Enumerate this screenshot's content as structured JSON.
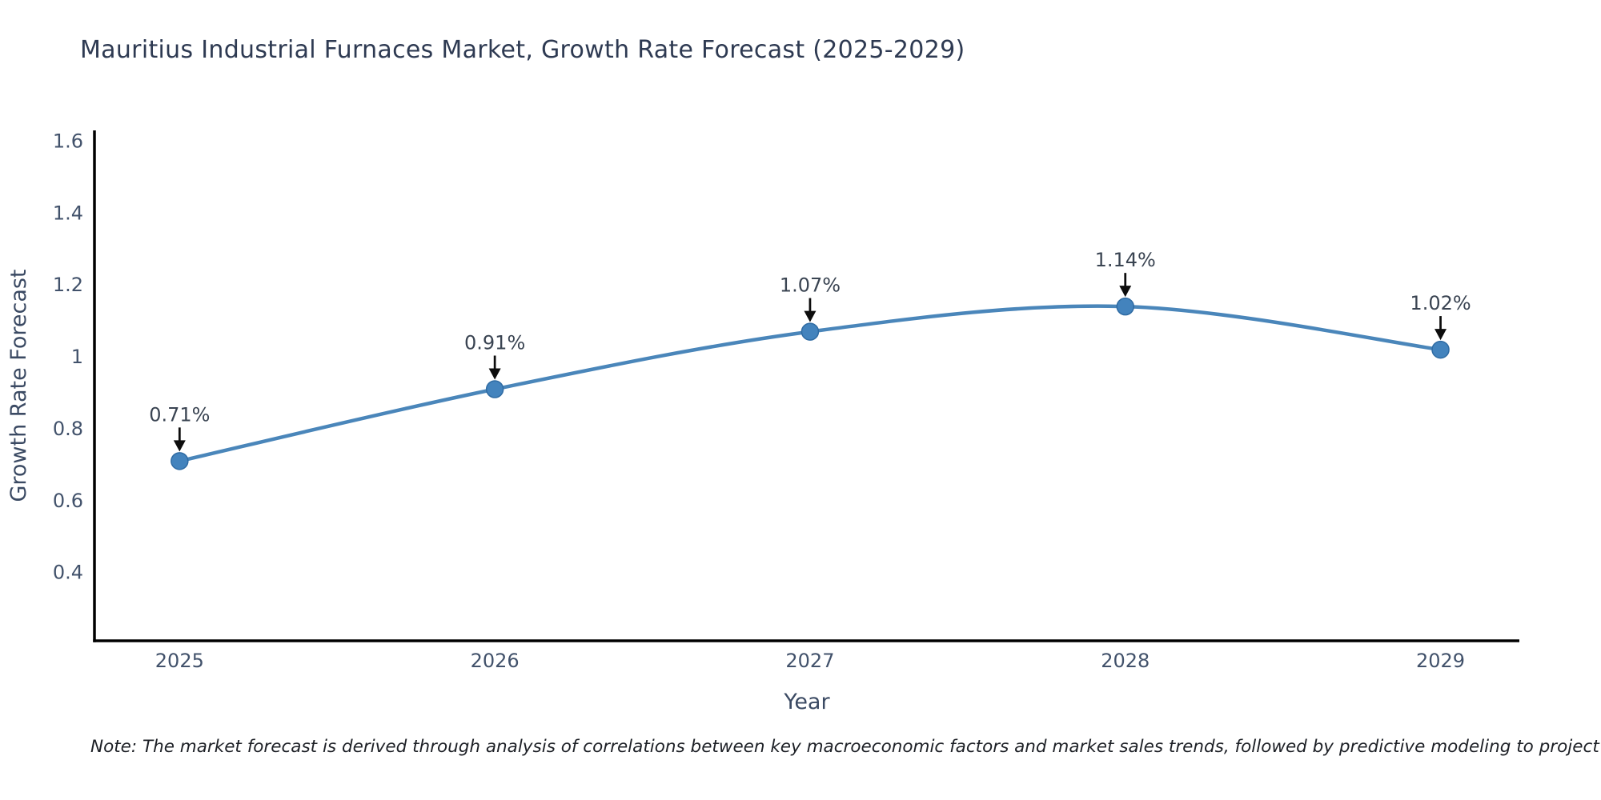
{
  "title": "Mauritius Industrial Furnaces Market, Growth Rate Forecast (2025-2029)",
  "note": "Note: The market forecast is derived through analysis of correlations between key macroeconomic factors and market sales trends, followed by predictive modeling to project future sales",
  "chart_data": {
    "type": "line",
    "title": "Mauritius Industrial Furnaces Market, Growth Rate Forecast (2025-2029)",
    "x": [
      2025,
      2026,
      2027,
      2028,
      2029
    ],
    "values": [
      0.71,
      0.91,
      1.07,
      1.14,
      1.02
    ],
    "point_labels": [
      "0.71%",
      "0.91%",
      "1.07%",
      "1.14%",
      "1.02%"
    ],
    "xlabel": "Year",
    "ylabel": "Growth Rate Forecast",
    "xtick_labels": [
      "2025",
      "2026",
      "2027",
      "2028",
      "2029"
    ],
    "ytick_values": [
      0.4,
      0.6,
      0.8,
      1.0,
      1.2,
      1.4,
      1.6
    ],
    "ytick_labels": [
      "0.4",
      "0.6",
      "0.8",
      "1",
      "1.2",
      "1.4",
      "1.6"
    ],
    "xlim": [
      2024.73,
      2029.25
    ],
    "ylim": [
      0.21,
      1.63
    ],
    "grid": false,
    "legend": "none",
    "line_color": "#4a86ba",
    "marker_color": "#4383bd",
    "marker_edge_color": "#2f6ba3",
    "arrow_color": "#0d0d0d",
    "axis_color": "#000000",
    "tick_color": "#42526b",
    "axis_title_color": "#3b4a63",
    "annotation_color": "#3a4452",
    "title_color": "#2e3a52",
    "background_color": "#ffffff"
  }
}
